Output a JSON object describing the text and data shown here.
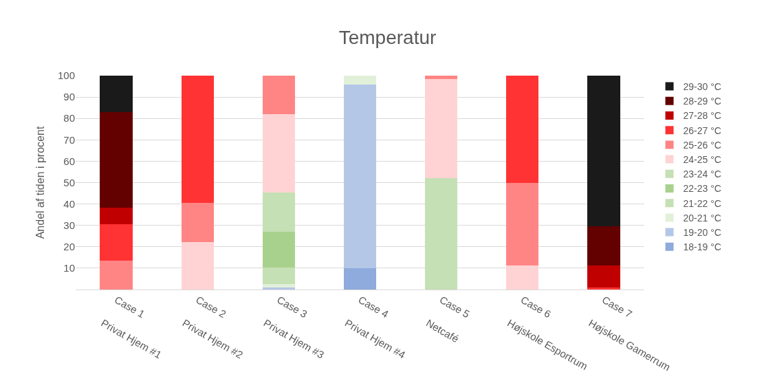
{
  "chart_data": {
    "type": "bar",
    "stacked": true,
    "title": "Temperatur",
    "ylabel": "Andel af tiden i procent",
    "categories": [
      "Case 1\nPrivat Hjem #1",
      "Case 2\nPrivat Hjem #2",
      "Case 3\nPrivat Hjem #3",
      "Case 4\nPrivat Hjem #4",
      "Case 5\nNetcafé",
      "Case 6\nHøjskole Esportrum",
      "Case 7\nHøjskole Gamerrum"
    ],
    "series": [
      {
        "name": "18-19 °C",
        "color": "#8faadc",
        "values": [
          null,
          null,
          null,
          10.0,
          null,
          null,
          null
        ]
      },
      {
        "name": "19-20 °C",
        "color": "#b4c7e7",
        "values": [
          null,
          null,
          0.9,
          85.9,
          null,
          null,
          null
        ]
      },
      {
        "name": "20-21 °C",
        "color": "#e2f0d9",
        "values": [
          null,
          null,
          1.6,
          4.1,
          null,
          null,
          null
        ]
      },
      {
        "name": "21-22 °C",
        "color": "#c5e0b4",
        "values": [
          null,
          null,
          7.8,
          null,
          null,
          null,
          null
        ]
      },
      {
        "name": "22-23 °C",
        "color": "#a9d18e",
        "values": [
          null,
          null,
          16.7,
          null,
          null,
          null,
          null
        ]
      },
      {
        "name": "23-24 °C",
        "color": "#c5e0b4",
        "values": [
          null,
          null,
          18.4,
          null,
          52.2,
          null,
          null
        ]
      },
      {
        "name": "24-25 °C",
        "color": "#ffd3d3",
        "values": [
          null,
          22.3,
          36.5,
          null,
          46.3,
          11.2,
          null
        ]
      },
      {
        "name": "25-26 °C",
        "color": "#ff8585",
        "values": [
          13.6,
          18.2,
          18.1,
          null,
          1.5,
          38.7,
          null
        ]
      },
      {
        "name": "26-27 °C",
        "color": "#ff3333",
        "values": [
          16.9,
          59.5,
          null,
          null,
          null,
          50.1,
          0.9
        ]
      },
      {
        "name": "27-28 °C",
        "color": "#c00000",
        "values": [
          7.8,
          null,
          null,
          null,
          null,
          null,
          10.5
        ]
      },
      {
        "name": "28-29 °C",
        "color": "#630000",
        "values": [
          44.8,
          null,
          null,
          null,
          null,
          null,
          18.2
        ]
      },
      {
        "name": "29-30 °C",
        "color": "#1a1a1a",
        "values": [
          16.9,
          null,
          null,
          null,
          null,
          null,
          70.4
        ]
      }
    ],
    "ylim": [
      0,
      100
    ],
    "yticks": [
      10,
      20,
      30,
      40,
      50,
      60,
      70,
      80,
      90,
      100
    ],
    "grid": "y",
    "legend": "right"
  }
}
